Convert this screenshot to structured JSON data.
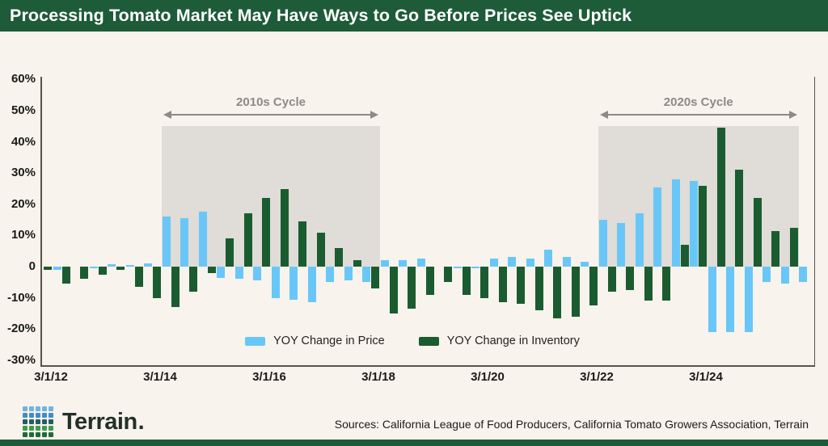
{
  "header": {
    "title": "Processing Tomato Market May Have Ways to Go Before Prices See Uptick"
  },
  "chart_data": {
    "type": "bar",
    "title": "Processing Tomato Market May Have Ways to Go Before Prices See Uptick",
    "x": [
      "3/1/12",
      "7/1/12",
      "11/1/12",
      "3/1/13",
      "7/1/13",
      "11/1/13",
      "3/1/14",
      "7/1/14",
      "11/1/14",
      "3/1/15",
      "7/1/15",
      "11/1/15",
      "3/1/16",
      "7/1/16",
      "11/1/16",
      "3/1/17",
      "7/1/17",
      "11/1/17",
      "3/1/18",
      "7/1/18",
      "11/1/18",
      "3/1/19",
      "7/1/19",
      "11/1/19",
      "3/1/20",
      "7/1/20",
      "11/1/20",
      "3/1/21",
      "7/1/21",
      "11/1/21",
      "3/1/22",
      "7/1/22",
      "11/1/22",
      "3/1/23",
      "7/1/23",
      "11/1/23",
      "3/1/24",
      "7/1/24",
      "11/1/24",
      "3/1/25",
      "7/1/25",
      "11/1/25"
    ],
    "series": [
      {
        "name": "YOY Change in Price",
        "color": "#69c7f7",
        "values": [
          -1,
          0,
          -0.5,
          0.7,
          0.6,
          1,
          16,
          15.5,
          17.5,
          -3.5,
          -4,
          -4.5,
          -10,
          -10.5,
          -11.5,
          -5,
          -4.5,
          -5,
          2,
          2.2,
          2.5,
          0,
          -0.5,
          -0.5,
          2.5,
          3,
          2.7,
          5.5,
          3,
          1.5,
          15,
          14,
          17,
          25.5,
          28,
          27.5,
          -21,
          -21,
          -21,
          -5,
          -5.5,
          -5
        ]
      },
      {
        "name": "YOY Change in Inventory",
        "color": "#1a5c30",
        "values": [
          -1,
          -5.5,
          -4,
          -2.5,
          -1,
          -6.5,
          -10,
          -13,
          -8,
          -2,
          9,
          17,
          22,
          25,
          14.5,
          11,
          6,
          2,
          -7,
          -15,
          -13.5,
          -9,
          -5,
          -9,
          -10,
          -11.5,
          -12,
          -14,
          -16.5,
          -16,
          -12.5,
          -8,
          -7.5,
          -11,
          -11,
          7,
          26,
          44.5,
          31,
          22,
          11.5,
          12.5
        ]
      }
    ],
    "y_ticks": [
      {
        "value": 60,
        "label": "60%"
      },
      {
        "value": 50,
        "label": "50%"
      },
      {
        "value": 40,
        "label": "40%"
      },
      {
        "value": 30,
        "label": "30%"
      },
      {
        "value": 20,
        "label": "20%"
      },
      {
        "value": 10,
        "label": "10%"
      },
      {
        "value": 0,
        "label": "0"
      },
      {
        "value": -10,
        "label": "-10%"
      },
      {
        "value": -20,
        "label": "-20%"
      },
      {
        "value": -30,
        "label": "-30%"
      }
    ],
    "x_tick_labels": [
      "3/1/12",
      "3/1/14",
      "3/1/16",
      "3/1/18",
      "3/1/20",
      "3/1/22",
      "3/1/24"
    ],
    "y_range": [
      -30,
      60
    ],
    "grid": false,
    "legend_position": "inside-bottom-center",
    "regions": [
      {
        "label": "2010s Cycle",
        "from": "3/1/14",
        "to": "3/1/18",
        "color": "#e0dcd7",
        "top_value": 45
      },
      {
        "label": "2020s Cycle",
        "from": "3/1/22",
        "to": "11/1/25",
        "color": "#e0dcd7",
        "top_value": 45
      }
    ]
  },
  "legend": {
    "price_label": "YOY Change in Price",
    "inventory_label": "YOY Change in Inventory"
  },
  "footer": {
    "logo_text": "Terrain",
    "logo_suffix": ".",
    "sources": "Sources: California League of Food Producers, California Tomato Growers Association, Terrain"
  },
  "colors": {
    "background": "#f8f3ec",
    "banner_green": "#1e5b39",
    "price_blue": "#69c7f7",
    "inventory_green": "#1a5c30",
    "region_gray": "#e0dcd7",
    "annotation_gray": "#8b8b85",
    "axis_dark": "#55554e"
  },
  "logo_row_colors": [
    "#6fb3e3",
    "#3f8ccb",
    "#265b68",
    "#3f9b4f",
    "#1f6b38"
  ]
}
